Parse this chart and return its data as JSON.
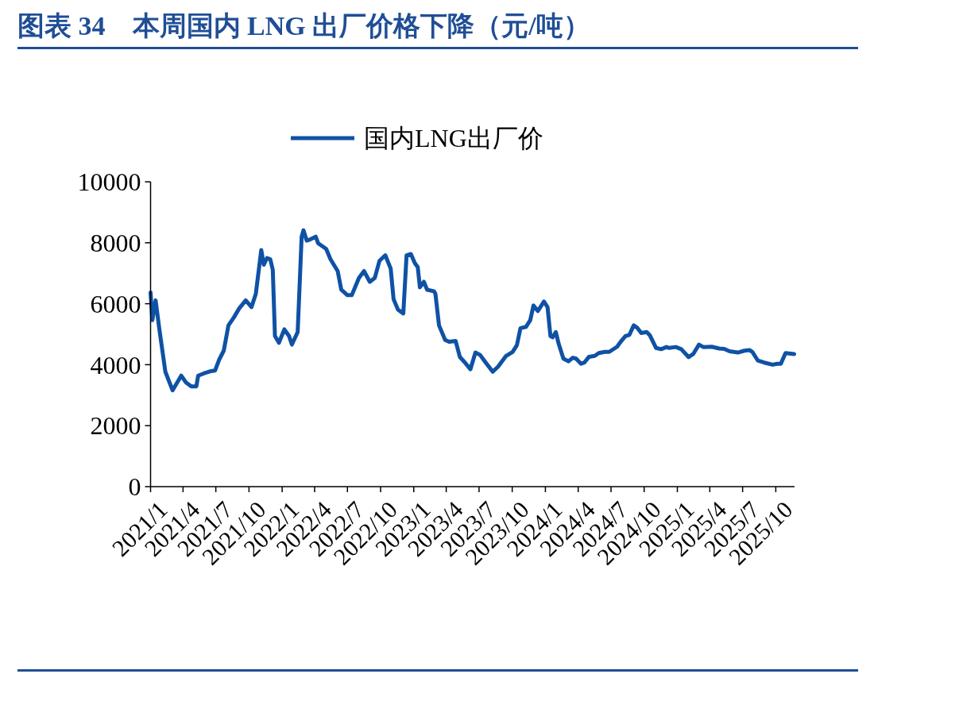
{
  "chart_data": {
    "type": "line",
    "title": "图表 34　本周国内 LNG 出厂价格下降（元/吨）",
    "legend": "top",
    "xlim": [
      "2021-01-01",
      "2025-11-22"
    ],
    "xticks": [
      {
        "value": "2021-01",
        "label": "2021/1"
      },
      {
        "value": "2021-04",
        "label": "2021/4"
      },
      {
        "value": "2021-07",
        "label": "2021/7"
      },
      {
        "value": "2021-10",
        "label": "2021/10"
      },
      {
        "value": "2022-01",
        "label": "2022/1"
      },
      {
        "value": "2022-04",
        "label": "2022/4"
      },
      {
        "value": "2022-07",
        "label": "2022/7"
      },
      {
        "value": "2022-10",
        "label": "2022/10"
      },
      {
        "value": "2023-01",
        "label": "2023/1"
      },
      {
        "value": "2023-04",
        "label": "2023/4"
      },
      {
        "value": "2023-07",
        "label": "2023/7"
      },
      {
        "value": "2023-10",
        "label": "2023/10"
      },
      {
        "value": "2024-01",
        "label": "2024/1"
      },
      {
        "value": "2024-04",
        "label": "2024/4"
      },
      {
        "value": "2024-07",
        "label": "2024/7"
      },
      {
        "value": "2024-10",
        "label": "2024/10"
      },
      {
        "value": "2025-01",
        "label": "2025/1"
      },
      {
        "value": "2025-04",
        "label": "2025/4"
      },
      {
        "value": "2025-07",
        "label": "2025/7"
      },
      {
        "value": "2025-10",
        "label": "2025/10"
      }
    ],
    "ylim": [
      0,
      10000
    ],
    "yticks": [
      0,
      2000,
      4000,
      6000,
      8000,
      10000
    ],
    "x": [
      "2021-01-01",
      "2021-01-06",
      "2021-01-15",
      "2021-01-25",
      "2021-02-11",
      "2021-03-03",
      "2021-03-27",
      "2021-04-09",
      "2021-04-24",
      "2021-05-08",
      "2021-05-13",
      "2021-05-30",
      "2021-06-18",
      "2021-06-29",
      "2021-07-10",
      "2021-07-23",
      "2021-08-05",
      "2021-08-20",
      "2021-09-04",
      "2021-09-22",
      "2021-10-08",
      "2021-10-20",
      "2021-11-04",
      "2021-11-11",
      "2021-11-20",
      "2021-11-29",
      "2021-12-06",
      "2021-12-12",
      "2021-12-23",
      "2022-01-07",
      "2022-01-20",
      "2022-01-28",
      "2022-02-13",
      "2022-02-24",
      "2022-03-01",
      "2022-03-10",
      "2022-03-20",
      "2022-04-04",
      "2022-04-11",
      "2022-05-03",
      "2022-05-15",
      "2022-06-04",
      "2022-06-14",
      "2022-07-01",
      "2022-07-13",
      "2022-08-02",
      "2022-08-16",
      "2022-09-01",
      "2022-09-15",
      "2022-09-28",
      "2022-10-14",
      "2022-10-29",
      "2022-11-06",
      "2022-11-18",
      "2022-12-03",
      "2022-12-12",
      "2022-12-24",
      "2023-01-04",
      "2023-01-12",
      "2023-01-18",
      "2023-01-29",
      "2023-02-07",
      "2023-02-26",
      "2023-03-02",
      "2023-03-12",
      "2023-03-29",
      "2023-04-09",
      "2023-04-27",
      "2023-05-09",
      "2023-05-23",
      "2023-06-07",
      "2023-06-21",
      "2023-07-04",
      "2023-07-17",
      "2023-08-08",
      "2023-08-23",
      "2023-09-14",
      "2023-10-02",
      "2023-10-14",
      "2023-10-24",
      "2023-11-08",
      "2023-11-20",
      "2023-11-29",
      "2023-12-11",
      "2023-12-28",
      "2024-01-07",
      "2024-01-15",
      "2024-01-21",
      "2024-01-30",
      "2024-02-07",
      "2024-02-20",
      "2024-03-05",
      "2024-03-17",
      "2024-03-26",
      "2024-04-09",
      "2024-04-18",
      "2024-05-01",
      "2024-05-17",
      "2024-05-28",
      "2024-06-14",
      "2024-06-26",
      "2024-07-18",
      "2024-07-29",
      "2024-08-10",
      "2024-08-21",
      "2024-09-02",
      "2024-09-11",
      "2024-09-23",
      "2024-10-08",
      "2024-10-17",
      "2024-11-03",
      "2024-11-17",
      "2024-12-02",
      "2024-12-09",
      "2024-12-28",
      "2025-01-12",
      "2025-02-01",
      "2025-02-14",
      "2025-03-02",
      "2025-03-14",
      "2025-04-06",
      "2025-04-27",
      "2025-05-11",
      "2025-05-26",
      "2025-06-18",
      "2025-07-06",
      "2025-07-20",
      "2025-07-28",
      "2025-08-12",
      "2025-08-30",
      "2025-09-22",
      "2025-10-05",
      "2025-10-15",
      "2025-10-28",
      "2025-11-21"
    ],
    "series": [
      {
        "name": "国内LNG出厂价",
        "color": "#0f52a5",
        "values": [
          6370,
          5460,
          6110,
          5200,
          3770,
          3160,
          3640,
          3420,
          3290,
          3290,
          3640,
          3720,
          3790,
          3810,
          4160,
          4460,
          5290,
          5550,
          5850,
          6110,
          5890,
          6330,
          7760,
          7280,
          7500,
          7460,
          7110,
          4940,
          4720,
          5160,
          4940,
          4660,
          5070,
          8200,
          8410,
          8070,
          8110,
          8200,
          7980,
          7800,
          7460,
          7070,
          6460,
          6280,
          6280,
          6850,
          7070,
          6720,
          6850,
          7410,
          7590,
          7150,
          6150,
          5810,
          5680,
          7590,
          7630,
          7330,
          7200,
          6540,
          6720,
          6460,
          6410,
          6330,
          5290,
          4810,
          4750,
          4780,
          4250,
          4070,
          3850,
          4400,
          4320,
          4110,
          3770,
          3940,
          4290,
          4420,
          4640,
          5200,
          5240,
          5460,
          5940,
          5760,
          6070,
          5890,
          4940,
          4900,
          5070,
          4680,
          4200,
          4110,
          4230,
          4200,
          4030,
          4070,
          4260,
          4290,
          4380,
          4420,
          4420,
          4590,
          4770,
          4940,
          4980,
          5290,
          5220,
          5040,
          5070,
          4960,
          4550,
          4510,
          4580,
          4550,
          4580,
          4510,
          4250,
          4350,
          4660,
          4580,
          4590,
          4530,
          4520,
          4440,
          4400,
          4460,
          4480,
          4420,
          4140,
          4070,
          4000,
          4030,
          4030,
          4380,
          4350
        ]
      }
    ]
  }
}
